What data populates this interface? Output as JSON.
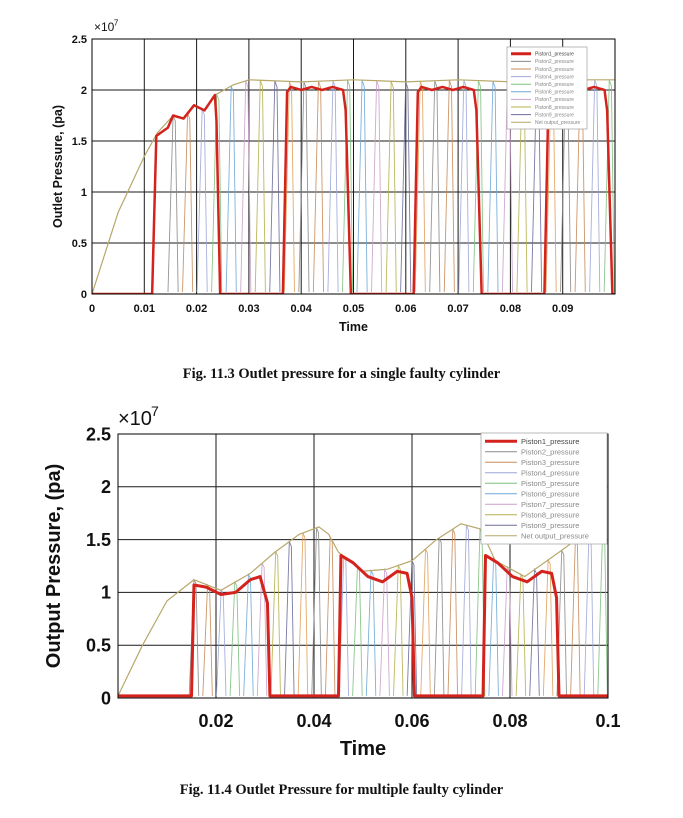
{
  "colors": {
    "piston1": "#d4231c",
    "piston_palette": [
      "#8a8a8a",
      "#c78b5a",
      "#9ea6d6",
      "#7fc07f",
      "#6fa7d6",
      "#c9a0c9",
      "#b5b04e",
      "#6b6b9a",
      "#e0a05a"
    ],
    "grid": "#1a1a1a",
    "net_output": "#b7a86a"
  },
  "figures": [
    {
      "caption": "Fig. 11.3 Outlet pressure for a single faulty cylinder",
      "chart_data": {
        "type": "line",
        "exponent_label": "×10",
        "exponent_power": "7",
        "xlabel": "Time",
        "ylabel": "Outlet Pressure, (pa)",
        "xlim": [
          0,
          0.1
        ],
        "ylim": [
          0,
          2.5
        ],
        "x_ticks": [
          "0",
          "0.01",
          "0.02",
          "0.03",
          "0.04",
          "0.05",
          "0.06",
          "0.07",
          "0.08",
          "0.09"
        ],
        "y_ticks": [
          "0",
          "0.5",
          "1",
          "1.5",
          "2",
          "2.5"
        ],
        "grid": true,
        "legend_position": "top-right",
        "legend": [
          "Piston1_pressure",
          "Piston2_pressure",
          "Piston3_pressure",
          "Piston4_pressure",
          "Piston5_pressure",
          "Piston6_pressure",
          "Piston7_pressure",
          "Piston8_pressure",
          "Piston9_pressure",
          "Net output_pressure"
        ],
        "series": [
          {
            "name": "Piston1_pressure",
            "x": [
              0.0,
              0.0115,
              0.0123,
              0.0145,
              0.0155,
              0.0175,
              0.0195,
              0.0215,
              0.0235,
              0.0238,
              0.0245,
              0.0365,
              0.0373,
              0.038,
              0.04,
              0.042,
              0.044,
              0.046,
              0.048,
              0.0485,
              0.0495,
              0.0615,
              0.0623,
              0.063,
              0.065,
              0.067,
              0.069,
              0.071,
              0.073,
              0.0735,
              0.0745,
              0.0865,
              0.0873,
              0.088,
              0.09,
              0.092,
              0.094,
              0.096,
              0.098,
              0.0985,
              0.0995,
              0.1
            ],
            "y": [
              0.0,
              0.0,
              1.55,
              1.63,
              1.75,
              1.72,
              1.85,
              1.8,
              1.95,
              1.7,
              0.0,
              0.0,
              1.98,
              2.03,
              2.0,
              2.03,
              2.0,
              2.03,
              2.0,
              1.8,
              0.0,
              0.0,
              1.98,
              2.03,
              2.0,
              2.03,
              2.0,
              2.03,
              2.0,
              1.8,
              0.0,
              0.0,
              1.98,
              2.03,
              2.0,
              2.03,
              2.0,
              2.03,
              2.0,
              1.8,
              0.0,
              0.0
            ]
          },
          {
            "name": "Net output_pressure",
            "x": [
              0.0,
              0.005,
              0.01,
              0.0125,
              0.0155,
              0.0175,
              0.0195,
              0.0215,
              0.0235,
              0.027,
              0.03,
              0.04,
              0.05,
              0.06,
              0.07,
              0.08,
              0.09,
              0.1
            ],
            "y": [
              0.0,
              0.8,
              1.35,
              1.58,
              1.75,
              1.72,
              1.85,
              1.8,
              1.95,
              2.05,
              2.1,
              2.08,
              2.1,
              2.08,
              2.1,
              2.08,
              2.1,
              2.1
            ]
          }
        ]
      }
    },
    {
      "caption": "Fig. 11.4 Outlet Pressure for multiple faulty cylinder",
      "chart_data": {
        "type": "line",
        "exponent_label": "×10",
        "exponent_power": "7",
        "xlabel": "Time",
        "ylabel": "Output Pressure, (pa)",
        "xlim": [
          0,
          0.1
        ],
        "ylim": [
          0,
          2.5
        ],
        "x_ticks": [
          "0.02",
          "0.04",
          "0.06",
          "0.08",
          "0.1"
        ],
        "y_ticks": [
          "0",
          "0.5",
          "1",
          "1.5",
          "2",
          "2.5"
        ],
        "grid": true,
        "legend_position": "top-right",
        "legend": [
          "Piston1_pressure",
          "Piston2_pressure",
          "Piston3_pressure",
          "Piston4_pressure",
          "Piston5_pressure",
          "Piston6_pressure",
          "Piston7_pressure",
          "Piston8_pressure",
          "Piston9_pressure",
          "Net output_pressure"
        ],
        "series": [
          {
            "name": "Piston1_pressure",
            "x": [
              0.0,
              0.015,
              0.0155,
              0.018,
              0.021,
              0.024,
              0.027,
              0.029,
              0.0305,
              0.031,
              0.045,
              0.0455,
              0.048,
              0.051,
              0.054,
              0.057,
              0.059,
              0.06,
              0.0605,
              0.0745,
              0.075,
              0.0775,
              0.0805,
              0.0835,
              0.0865,
              0.0885,
              0.0895,
              0.09,
              0.1
            ],
            "y": [
              0.02,
              0.02,
              1.07,
              1.05,
              0.98,
              1.0,
              1.12,
              1.15,
              0.9,
              0.02,
              0.02,
              1.35,
              1.28,
              1.15,
              1.1,
              1.2,
              1.18,
              0.95,
              0.02,
              0.02,
              1.35,
              1.28,
              1.15,
              1.1,
              1.2,
              1.18,
              0.95,
              0.02,
              0.02
            ]
          },
          {
            "name": "Net output_pressure",
            "x": [
              0.0,
              0.005,
              0.01,
              0.0155,
              0.021,
              0.027,
              0.032,
              0.037,
              0.041,
              0.043,
              0.045,
              0.05,
              0.055,
              0.06,
              0.065,
              0.07,
              0.074,
              0.077,
              0.083,
              0.09,
              0.095,
              0.1
            ],
            "y": [
              0.02,
              0.5,
              0.92,
              1.12,
              1.02,
              1.18,
              1.38,
              1.55,
              1.62,
              1.55,
              1.38,
              1.2,
              1.22,
              1.3,
              1.5,
              1.65,
              1.6,
              1.3,
              1.15,
              1.38,
              1.55,
              1.6
            ]
          }
        ]
      }
    }
  ]
}
